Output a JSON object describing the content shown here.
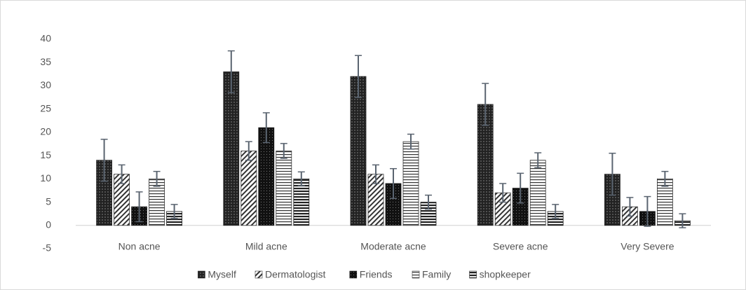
{
  "chart_data": {
    "type": "bar",
    "categories": [
      "Non acne",
      "Mild acne",
      "Moderate acne",
      "Severe acne",
      "Very Severe"
    ],
    "series": [
      {
        "name": "Myself",
        "color": "#222222",
        "pattern": "dots",
        "values": [
          14,
          33,
          32,
          26,
          11
        ],
        "errors": [
          4.5,
          4.5,
          4.5,
          4.5,
          4.5
        ]
      },
      {
        "name": "Dermatologist",
        "color": "#333333",
        "pattern": "diagonal",
        "values": [
          11,
          16,
          11,
          7,
          4
        ],
        "errors": [
          2,
          2,
          2,
          2,
          2
        ]
      },
      {
        "name": "Friends",
        "color": "#1a1a1a",
        "pattern": "checks",
        "values": [
          4,
          21,
          9,
          8,
          3
        ],
        "errors": [
          3.2,
          3.2,
          3.2,
          3.2,
          3.2
        ]
      },
      {
        "name": "Family",
        "color": "#333333",
        "pattern": "hlines",
        "values": [
          10,
          16,
          18,
          14,
          10
        ],
        "errors": [
          1.6,
          1.6,
          1.6,
          1.6,
          1.6
        ]
      },
      {
        "name": "shopkeeper",
        "color": "#222222",
        "pattern": "thicklines",
        "values": [
          3,
          10,
          5,
          3,
          1
        ],
        "errors": [
          1.5,
          1.5,
          1.5,
          1.5,
          1.5
        ]
      }
    ],
    "ylim": [
      -5,
      40
    ],
    "yticks": [
      -5,
      0,
      5,
      10,
      15,
      20,
      25,
      30,
      35,
      40
    ],
    "grid": false,
    "legend": "bottom"
  }
}
